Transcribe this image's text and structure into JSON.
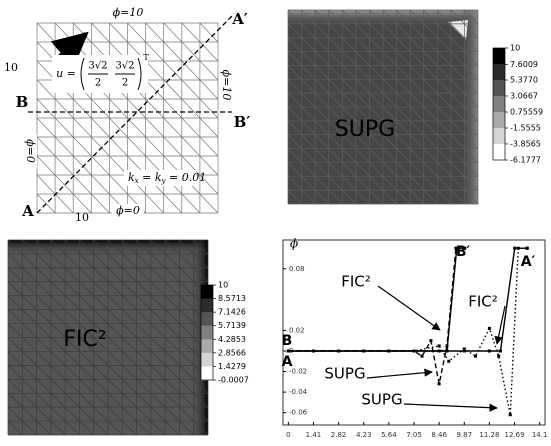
{
  "figure": {
    "mesh": {
      "top_label": "ϕ=10",
      "bottom_label": "ϕ=0",
      "left_label": "ϕ=0",
      "right_label": "ϕ=10",
      "height_label": "10",
      "width_label": "10",
      "point_a": "A",
      "point_b": "B",
      "point_a2": "A′",
      "point_b2": "B′",
      "velocity": {
        "symbol": "u =",
        "x_numer": "3√2",
        "x_denom": "2",
        "y_numer": "3√2",
        "y_denom": "2",
        "transpose": "T"
      },
      "diffusivity": {
        "k1": "k",
        "s1": "x",
        "eq1": " = k",
        "s2": "y",
        "eq2": " = 0.01"
      }
    },
    "supg_field": {
      "label": "SUPG",
      "clim": [
        -6.1777,
        10
      ],
      "colorbar_ticks": [
        10,
        7.6009,
        {
          "value": 5.377,
          "label": "5.3770"
        },
        3.0667,
        0.75559,
        -1.5555,
        -3.8565,
        -6.1777
      ]
    },
    "fic_field": {
      "label": "FIC²",
      "clim": [
        -0.0007,
        10
      ],
      "colorbar_ticks": [
        10,
        8.5713,
        7.1426,
        5.7139,
        4.2853,
        2.8566,
        1.4279,
        -0.0007
      ]
    }
  },
  "chart_data": {
    "type": "line",
    "y_label": "ϕ",
    "xlim": [
      -0.3,
      14.4
    ],
    "ylim": [
      -0.072,
      0.108
    ],
    "xticks": [
      0,
      1.41,
      2.82,
      4.23,
      5.64,
      7.05,
      8.46,
      9.87,
      11.28,
      12.69,
      14.1
    ],
    "yticks": [
      0.08,
      0.02,
      0,
      -0.02,
      -0.04,
      -0.06
    ],
    "series": [
      {
        "color": "#000000",
        "dash": "solid",
        "x": [
          0,
          1.41,
          2.82,
          4.23,
          5.64,
          7.05,
          8.46,
          8.9,
          9.45,
          9.9
        ],
        "values": [
          0,
          0,
          0,
          0,
          0,
          0,
          0,
          0,
          0.1,
          0.1
        ]
      },
      {
        "color": "#000000",
        "dash": "dashed",
        "x": [
          0,
          1.41,
          2.82,
          4.23,
          5.64,
          7.05,
          7.5,
          8.0,
          8.46,
          8.9,
          9.4,
          9.87
        ],
        "values": [
          0,
          0,
          0,
          0,
          0,
          0,
          -0.005,
          0.01,
          -0.032,
          0.005,
          0.1,
          0.1
        ]
      },
      {
        "color": "#000000",
        "dash": "solid",
        "x": [
          0,
          2.82,
          5.64,
          8.46,
          9.87,
          11.28,
          11.9,
          12.7,
          13.4
        ],
        "values": [
          0,
          0,
          0,
          0,
          0,
          0,
          0,
          0.1,
          0.1
        ]
      },
      {
        "color": "#000000",
        "dash": "dotted",
        "x": [
          0,
          2.82,
          5.64,
          7.05,
          8.46,
          9.0,
          9.87,
          10.5,
          11.28,
          11.8,
          12.45,
          12.9,
          13.4
        ],
        "values": [
          0,
          0,
          0,
          0,
          0.005,
          -0.01,
          0.002,
          -0.005,
          0.022,
          -0.005,
          -0.062,
          0.1,
          0.1
        ]
      }
    ],
    "annotations": [
      "FIC²",
      "SUPG",
      "FIC²",
      "SUPG",
      "B",
      "A",
      "B′",
      "A′"
    ]
  }
}
